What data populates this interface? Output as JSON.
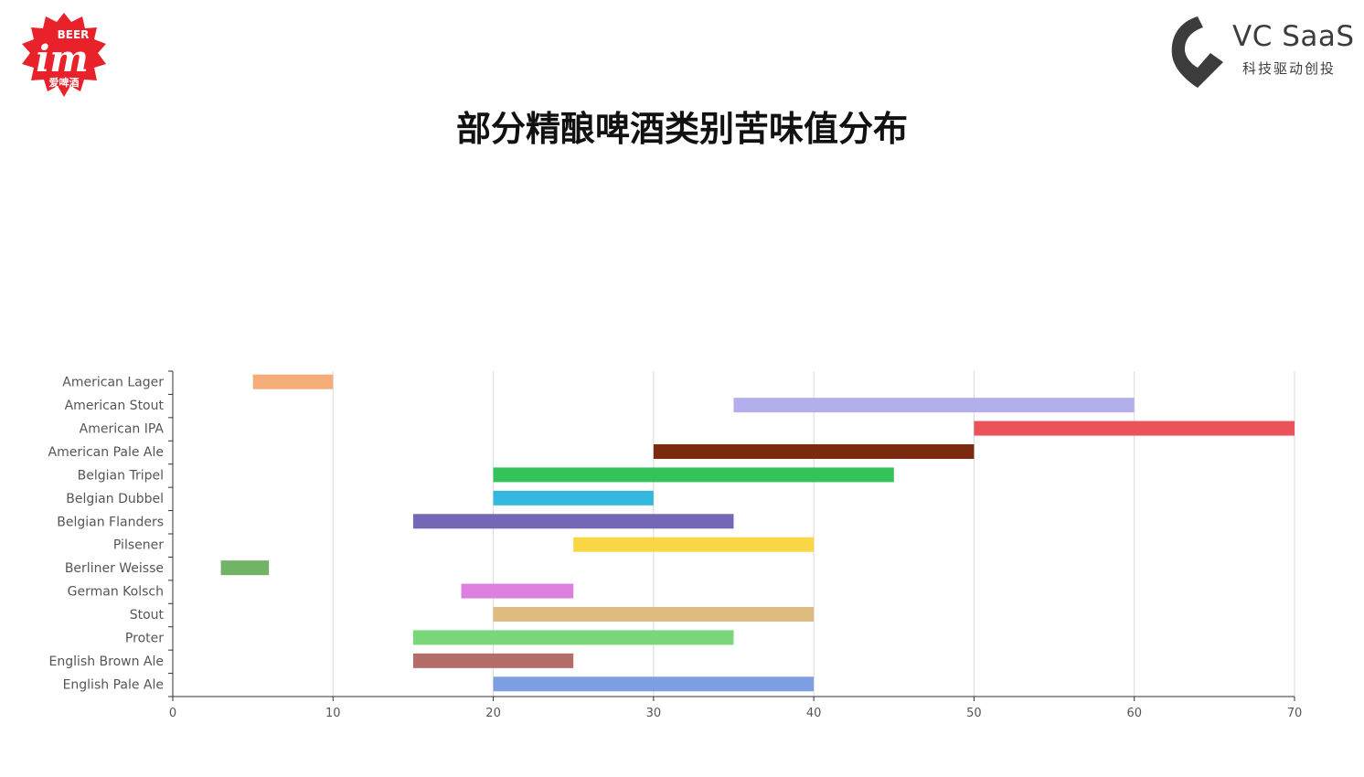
{
  "logo_left": {
    "badge_text": "BEER",
    "main_text": "im",
    "sub_text": "爱啤酒",
    "color": "#e8212a"
  },
  "logo_right": {
    "brand": "VC SaaS",
    "tagline": "科技驱动创投",
    "color": "#3c3c3c"
  },
  "title": "部分精酿啤酒类别苦味值分布",
  "chart_data": {
    "type": "bar",
    "orientation": "horizontal-range",
    "categories": [
      "American Lager",
      "American Stout",
      "American IPA",
      "American Pale Ale",
      "Belgian Tripel",
      "Belgian Dubbel",
      "Belgian Flanders",
      "Pilsener",
      "Berliner Weisse",
      "German Kolsch",
      "Stout",
      "Proter",
      "English Brown Ale",
      "English Pale Ale"
    ],
    "ranges": [
      [
        5,
        10
      ],
      [
        35,
        60
      ],
      [
        50,
        70
      ],
      [
        30,
        50
      ],
      [
        20,
        45
      ],
      [
        20,
        30
      ],
      [
        15,
        35
      ],
      [
        25,
        40
      ],
      [
        3,
        6
      ],
      [
        18,
        25
      ],
      [
        20,
        40
      ],
      [
        15,
        35
      ],
      [
        15,
        25
      ],
      [
        20,
        40
      ]
    ],
    "colors": [
      "#f5ad7a",
      "#b3aeec",
      "#eb525a",
      "#7b2a10",
      "#34c25a",
      "#35b8e0",
      "#7467b7",
      "#f8d646",
      "#73b366",
      "#de7fe0",
      "#e0bb80",
      "#79d77a",
      "#b56d6a",
      "#7e9ee2"
    ],
    "xlim": [
      0,
      70
    ],
    "xticks": [
      "0",
      "10",
      "20",
      "30",
      "40",
      "50",
      "60",
      "70"
    ],
    "grid": true
  }
}
